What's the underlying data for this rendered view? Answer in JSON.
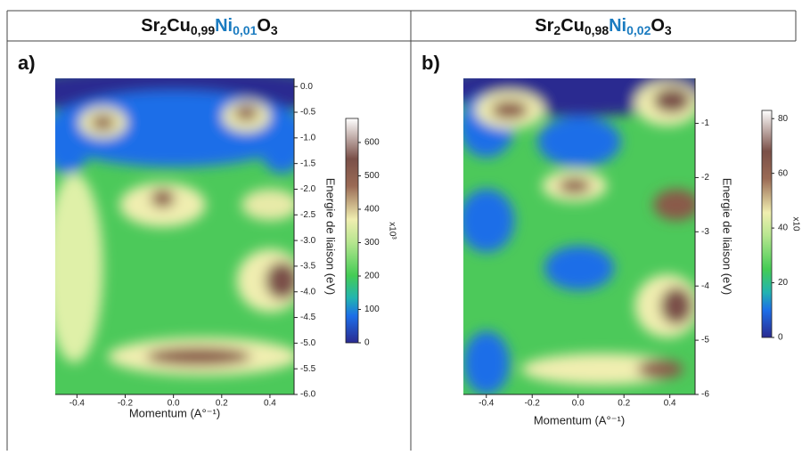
{
  "chart_data": [
    {
      "type": "heatmap",
      "panel_label": "a)",
      "title_parts": [
        "Sr",
        "2",
        "Cu",
        "0,99",
        "Ni",
        "0,01",
        "O",
        "3"
      ],
      "xlabel": "Momentum (A°⁻¹)",
      "ylabel": "Energie de liaison (eV)",
      "colorbar_label": "x10³",
      "xlim": [
        -0.49,
        0.5
      ],
      "ylim": [
        0.16,
        -6
      ],
      "xticks": [
        -0.4,
        -0.2,
        {
          "value": 0,
          "label": "0.0"
        },
        0.2,
        0.4
      ],
      "yticks": [
        {
          "value": 0,
          "label": "0.0"
        },
        -0.5,
        {
          "value": -1,
          "label": "-1.0"
        },
        -1.5,
        {
          "value": -2,
          "label": "-2.0"
        },
        -2.5,
        {
          "value": -3,
          "label": "-3.0"
        },
        -3.5,
        {
          "value": -4,
          "label": "-4.0"
        },
        -4.5,
        {
          "value": -5,
          "label": "-5.0"
        },
        -5.5,
        {
          "value": -6,
          "label": "-6.0"
        }
      ],
      "clim": [
        0,
        672
      ],
      "cticks": [
        0,
        100,
        200,
        300,
        400,
        500,
        600
      ]
    },
    {
      "type": "heatmap",
      "panel_label": "b)",
      "title_parts": [
        "Sr",
        "2",
        "Cu",
        "0,98",
        "Ni",
        "0,02",
        "O",
        "3"
      ],
      "xlabel": "Momentum (A°⁻¹)",
      "ylabel": "Energie de liaison (eV)",
      "colorbar_label": "x10",
      "xlim": [
        -0.5,
        0.51
      ],
      "ylim": [
        -0.17,
        -6
      ],
      "xticks": [
        -0.4,
        -0.2,
        {
          "value": 0,
          "label": "0.0"
        },
        0.2,
        0.4
      ],
      "yticks": [
        -1,
        -2,
        -3,
        -4,
        -5,
        -6
      ],
      "clim": [
        0,
        83
      ],
      "cticks": [
        0,
        20,
        40,
        60,
        80
      ]
    }
  ]
}
